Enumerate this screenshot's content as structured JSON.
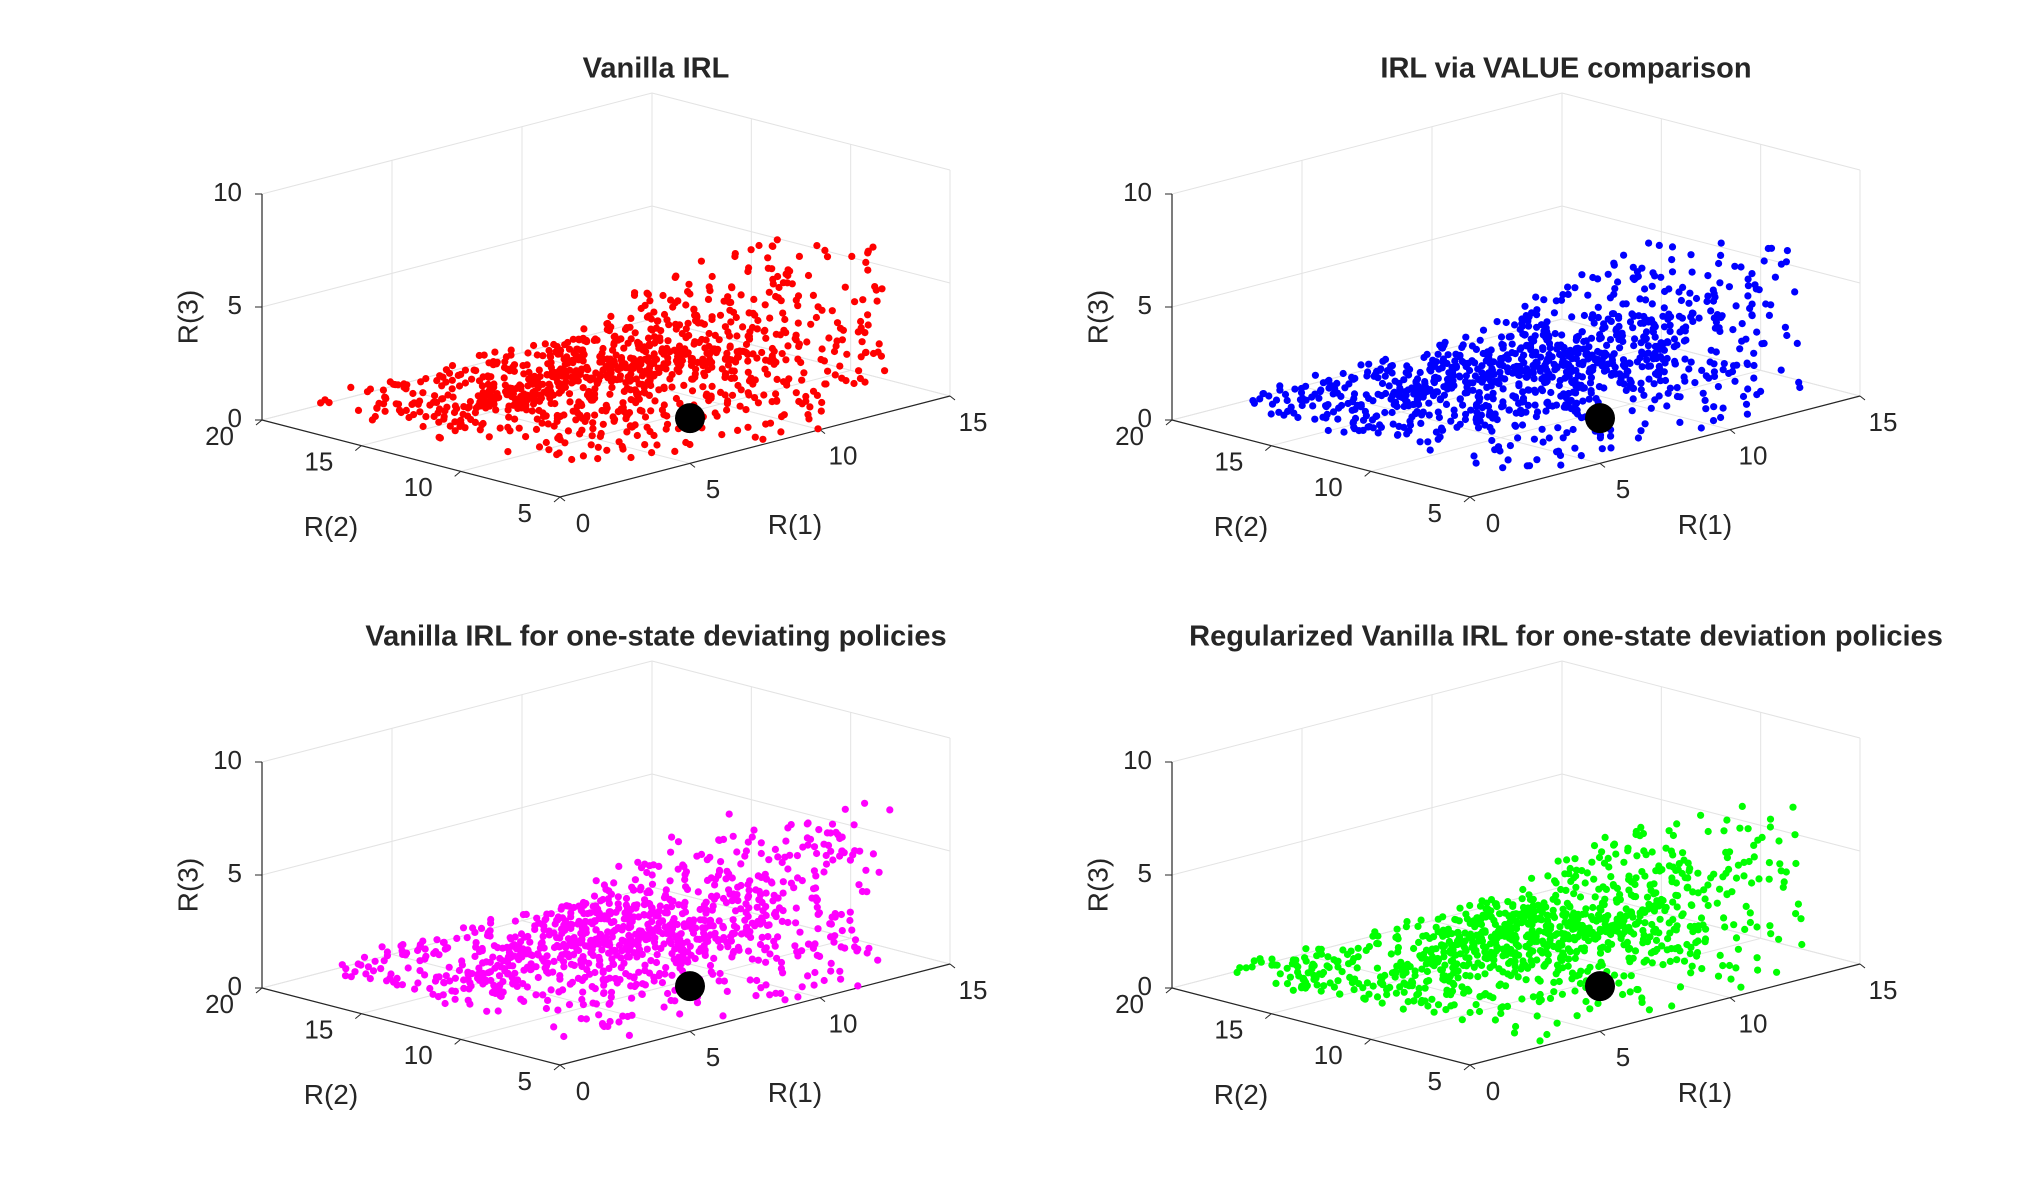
{
  "chart_data": [
    {
      "type": "scatter",
      "title": "Vanilla IRL",
      "xlabel": "R(1)",
      "ylabel": "R(2)",
      "zlabel": "R(3)",
      "xlim": [
        0,
        15
      ],
      "ylim": [
        5,
        20
      ],
      "zlim": [
        0,
        10
      ],
      "xticks": [
        "0",
        "5",
        "10",
        "15"
      ],
      "yticks": [
        "5",
        "10",
        "15",
        "20"
      ],
      "zticks": [
        "0",
        "5",
        "10"
      ],
      "grid": true,
      "color": "#ff0000",
      "point_count": 1000,
      "marker": {
        "x": 5,
        "y": 5,
        "z": 2,
        "color": "#000000"
      }
    },
    {
      "type": "scatter",
      "title": "IRL via VALUE comparison",
      "xlabel": "R(1)",
      "ylabel": "R(2)",
      "zlabel": "R(3)",
      "xlim": [
        0,
        15
      ],
      "ylim": [
        5,
        20
      ],
      "zlim": [
        0,
        10
      ],
      "xticks": [
        "0",
        "5",
        "10",
        "15"
      ],
      "yticks": [
        "5",
        "10",
        "15",
        "20"
      ],
      "zticks": [
        "0",
        "5",
        "10"
      ],
      "grid": true,
      "color": "#0000ff",
      "point_count": 1000,
      "marker": {
        "x": 5,
        "y": 5,
        "z": 2,
        "color": "#000000"
      }
    },
    {
      "type": "scatter",
      "title": "Vanilla IRL for one-state deviating policies",
      "xlabel": "R(1)",
      "ylabel": "R(2)",
      "zlabel": "R(3)",
      "xlim": [
        0,
        15
      ],
      "ylim": [
        5,
        20
      ],
      "zlim": [
        0,
        10
      ],
      "xticks": [
        "0",
        "5",
        "10",
        "15"
      ],
      "yticks": [
        "5",
        "10",
        "15",
        "20"
      ],
      "zticks": [
        "0",
        "5",
        "10"
      ],
      "grid": true,
      "color": "#ff00ff",
      "point_count": 1000,
      "marker": {
        "x": 5,
        "y": 5,
        "z": 2,
        "color": "#000000"
      }
    },
    {
      "type": "scatter",
      "title": "Regularized Vanilla IRL for one-state deviation policies",
      "xlabel": "R(1)",
      "ylabel": "R(2)",
      "zlabel": "R(3)",
      "xlim": [
        0,
        15
      ],
      "ylim": [
        5,
        20
      ],
      "zlim": [
        0,
        10
      ],
      "xticks": [
        "0",
        "5",
        "10",
        "15"
      ],
      "yticks": [
        "5",
        "10",
        "15",
        "20"
      ],
      "zticks": [
        "0",
        "5",
        "10"
      ],
      "grid": true,
      "color": "#00ff00",
      "point_count": 1000,
      "marker": {
        "x": 5,
        "y": 5,
        "z": 2,
        "color": "#000000"
      }
    }
  ]
}
